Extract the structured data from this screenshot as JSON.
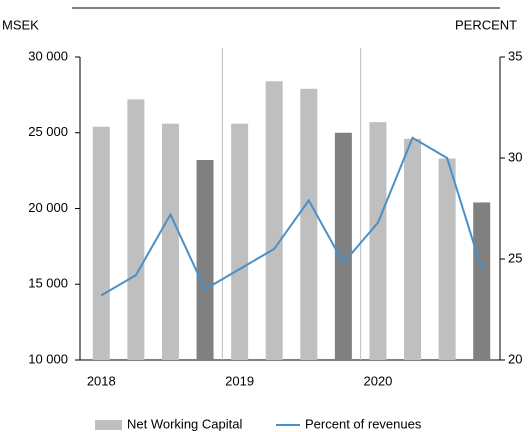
{
  "chart_data": {
    "type": "bar",
    "y_label": "MSEK",
    "y2_label": "PERCENT",
    "categories": [
      "2018",
      null,
      null,
      null,
      "2019",
      null,
      null,
      null,
      "2020",
      null,
      null,
      null
    ],
    "series": [
      {
        "name": "Net Working Capital",
        "color": "#bfbfbf",
        "colors": [
          "#bfbfbf",
          "#bfbfbf",
          "#bfbfbf",
          "#808080",
          "#bfbfbf",
          "#bfbfbf",
          "#bfbfbf",
          "#808080",
          "#bfbfbf",
          "#bfbfbf",
          "#bfbfbf",
          "#808080"
        ],
        "values": [
          25400,
          27200,
          25600,
          23200,
          25600,
          28400,
          27900,
          25000,
          25700,
          24600,
          23300,
          20400
        ]
      },
      {
        "name": "Percent of revenues",
        "color": "#4a90c8",
        "type": "line",
        "axis": "y2",
        "values": [
          23.2,
          24.2,
          27.2,
          23.5,
          24.5,
          25.5,
          27.9,
          24.8,
          26.8,
          31.0,
          30.0,
          24.5
        ]
      }
    ],
    "ylim": [
      10000,
      30000
    ],
    "yticks": [
      {
        "value": 10000,
        "label": "10 000"
      },
      {
        "value": 15000,
        "label": "15 000"
      },
      {
        "value": 20000,
        "label": "20 000"
      },
      {
        "value": 25000,
        "label": "25 000"
      },
      {
        "value": 30000,
        "label": "30 000"
      }
    ],
    "y2lim": [
      20,
      35
    ],
    "y2ticks": [
      20,
      25,
      30,
      35
    ]
  }
}
